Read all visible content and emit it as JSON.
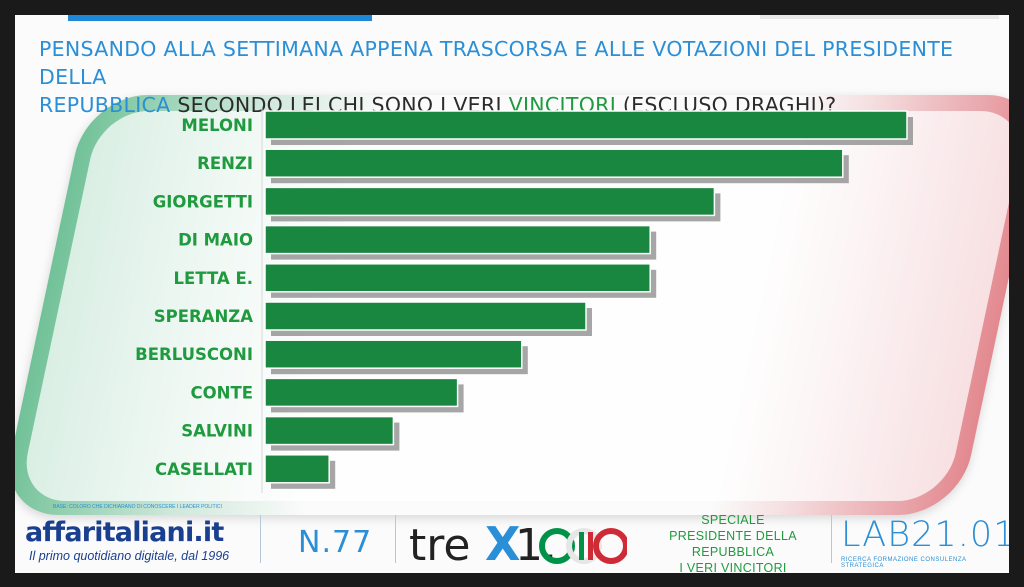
{
  "title": {
    "part1": "PENSANDO ALLA SETTIMANA APPENA TRASCORSA E ALLE VOTAZIONI DEL PRESIDENTE DELLA",
    "part2": "REPUBBLICA",
    "part3": " SECONDO LEI CHI SONO I VERI ",
    "part4": "VINCITORI",
    "part5": " (ESCLUSO DRAGHI)?"
  },
  "colors": {
    "bar": "#19873f",
    "bar_shadow": "#888888",
    "label": "#1f9a3e",
    "title_blue": "#2a8fd6",
    "brand_blue": "#1b3f8f",
    "flag_green": "#009246",
    "flag_red": "#ce2b37"
  },
  "chart_data": {
    "type": "bar",
    "orientation": "horizontal",
    "categories": [
      "MELONI",
      "RENZI",
      "GIORGETTI",
      "DI MAIO",
      "LETTA E.",
      "SPERANZA",
      "BERLUSCONI",
      "CONTE",
      "SALVINI",
      "CASELLATI"
    ],
    "values": [
      10,
      9,
      7,
      6,
      6,
      5,
      4,
      3,
      2,
      1
    ],
    "xlim": [
      0,
      10
    ],
    "grid": false,
    "legend": "none"
  },
  "footer": {
    "note": "BASE: COLORO CHE DICHIARANO DI CONOSCERE I LEADER POLITICI",
    "brand": "affaritaliani.it",
    "brand_tagline": "Il primo quotidiano digitale, dal 1996",
    "issue": "N.77",
    "logo_text": "treX1.000",
    "special_lines": [
      "SPECIALE",
      "PRESIDENTE DELLA REPUBBLICA",
      "I VERI VINCITORI"
    ],
    "lab": "LAB21.01",
    "lab_tagline": "RICERCA FORMAZIONE CONSULENZA STRATEGICA"
  }
}
